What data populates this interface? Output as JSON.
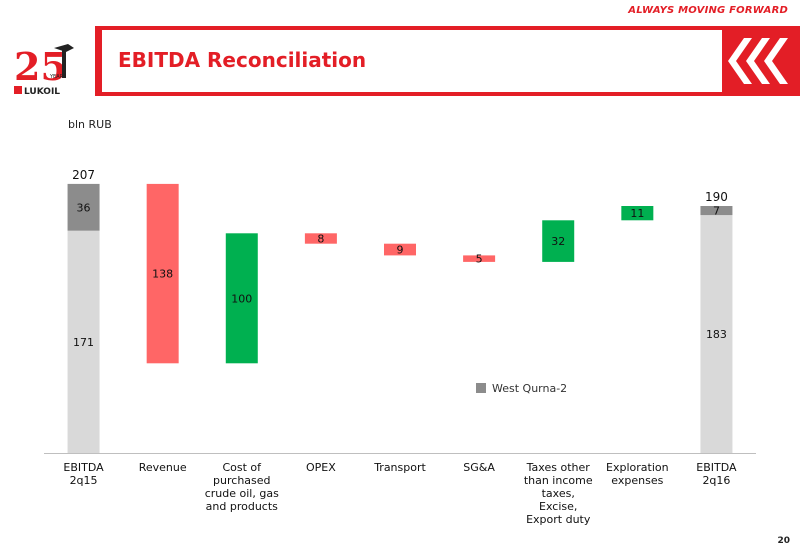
{
  "header": {
    "tagline": "ALWAYS MOVING FORWARD",
    "title": "EBITDA Reconciliation",
    "logo_text": "LUKOIL",
    "logo_years": "YEARS",
    "logo_number": "25"
  },
  "page_number": "20",
  "colors": {
    "brand_red": "#e31e26",
    "increase": "#ff6666",
    "decrease": "#00b050",
    "total": "#d9d9d9",
    "west_qurna": "#8c8c8c"
  },
  "chart_data": {
    "type": "waterfall",
    "unit_label": "bln RUB",
    "ylim": [
      0,
      245
    ],
    "categories": [
      [
        "EBITDA",
        "2q15"
      ],
      [
        "Revenue"
      ],
      [
        "Cost of",
        "purchased",
        "crude oil, gas",
        "and products"
      ],
      [
        "OPEX"
      ],
      [
        "Transport"
      ],
      [
        "SG&A"
      ],
      [
        "Taxes other",
        "than income",
        "taxes,",
        "Excise,",
        "Export duty"
      ],
      [
        "Exploration",
        "expenses"
      ],
      [
        "EBITDA",
        "2q16"
      ]
    ],
    "bars": [
      {
        "kind": "total",
        "segments": [
          {
            "label": "171",
            "from": 0,
            "to": 171,
            "color": "total"
          },
          {
            "label": "36",
            "from": 171,
            "to": 207,
            "color": "west_qurna"
          }
        ],
        "total_label": "207"
      },
      {
        "kind": "delta",
        "label": "138",
        "from": 69,
        "to": 207,
        "color": "increase"
      },
      {
        "kind": "delta",
        "label": "100",
        "from": 69,
        "to": 169,
        "color": "decrease"
      },
      {
        "kind": "delta",
        "label": "8",
        "from": 161,
        "to": 169,
        "color": "increase"
      },
      {
        "kind": "delta",
        "label": "9",
        "from": 152,
        "to": 161,
        "color": "increase"
      },
      {
        "kind": "delta",
        "label": "5",
        "from": 147,
        "to": 152,
        "color": "increase"
      },
      {
        "kind": "delta",
        "label": "32",
        "from": 147,
        "to": 179,
        "color": "decrease"
      },
      {
        "kind": "delta",
        "label": "11",
        "from": 179,
        "to": 190,
        "color": "decrease"
      },
      {
        "kind": "total",
        "segments": [
          {
            "label": "183",
            "from": 0,
            "to": 183,
            "color": "total"
          },
          {
            "label": "7",
            "from": 183,
            "to": 190,
            "color": "west_qurna"
          }
        ],
        "total_label": "190"
      }
    ],
    "legend": [
      {
        "name": "West Qurna-2",
        "color": "west_qurna"
      }
    ],
    "legend_position": "center-right"
  }
}
